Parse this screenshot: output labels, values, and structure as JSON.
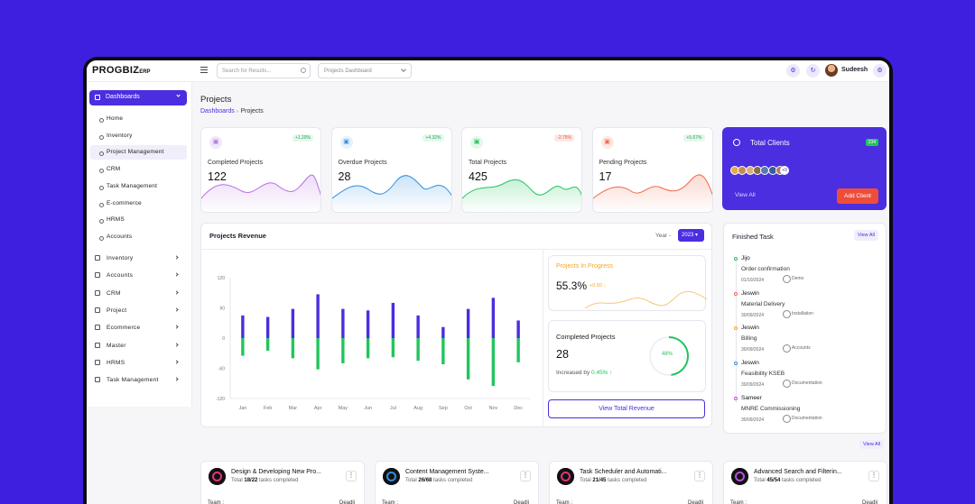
{
  "app": {
    "logo": "PROGBIZ",
    "logo_suffix": "ERP"
  },
  "topbar": {
    "search_placeholder": "Search for Results...",
    "select_value": "Projects Dashboard",
    "user": "Sudeesh"
  },
  "sidebar": {
    "active": "Dashboards",
    "sub_items": [
      {
        "label": "Home"
      },
      {
        "label": "Inventory"
      },
      {
        "label": "Project Management",
        "active": true
      },
      {
        "label": "CRM"
      },
      {
        "label": "Task Management"
      },
      {
        "label": "E-commerce"
      },
      {
        "label": "HRMS"
      },
      {
        "label": "Accounts"
      }
    ],
    "menu_items": [
      {
        "label": "Inventory",
        "icon": "home-icon"
      },
      {
        "label": "Accounts",
        "icon": "wallet-icon"
      },
      {
        "label": "CRM",
        "icon": "crm-icon"
      },
      {
        "label": "Project",
        "icon": "folder-icon"
      },
      {
        "label": "Ecommerce",
        "icon": "cart-icon"
      },
      {
        "label": "Master",
        "icon": "master-icon"
      },
      {
        "label": "HRMS",
        "icon": "people-icon"
      },
      {
        "label": "Task Management",
        "icon": "task-icon"
      }
    ]
  },
  "page": {
    "title": "Projects",
    "breadcrumb": {
      "home": "Dashboards",
      "sep": "»",
      "current": "Projects"
    }
  },
  "stats": [
    {
      "label": "Completed Projects",
      "value": "122",
      "change": "+1.20%",
      "color": "#b86fe0",
      "bg": "#f0e8fb",
      "icon": "document-icon",
      "pill_bg": "#e5f8ec",
      "pill_color": "#21a55d"
    },
    {
      "label": "Overdue Projects",
      "value": "28",
      "change": "+4.32%",
      "color": "#2f8fe0",
      "bg": "#e5f1fc",
      "icon": "briefcase-icon",
      "pill_bg": "#e5f8ec",
      "pill_color": "#21a55d"
    },
    {
      "label": "Total Projects",
      "value": "425",
      "change": "-2.75%",
      "color": "#21c55d",
      "bg": "#e3f8ea",
      "icon": "clipboard-icon",
      "pill_bg": "#fde8e6",
      "pill_color": "#e0513a"
    },
    {
      "label": "Pending Projects",
      "value": "17",
      "change": "+5.67%",
      "color": "#ef6a4a",
      "bg": "#fde8e3",
      "icon": "clock-icon",
      "pill_bg": "#e5f8ec",
      "pill_color": "#21a55d"
    }
  ],
  "clients": {
    "title": "Total Clients",
    "badge": "234",
    "more": "+9",
    "view_all": "View All",
    "add": "Add Client"
  },
  "revenue": {
    "title": "Projects Revenue",
    "year_label": "Year -",
    "year": "2023",
    "view_total": "View Total Revenue"
  },
  "chart_data": {
    "type": "bar",
    "categories": [
      "Jan",
      "Feb",
      "Mar",
      "Apr",
      "May",
      "Jun",
      "Jul",
      "Aug",
      "Sep",
      "Oct",
      "Nov",
      "Dec"
    ],
    "series": [
      {
        "color": "#4a2ee0",
        "values": [
          45,
          42,
          58,
          87,
          58,
          55,
          70,
          45,
          22,
          58,
          80,
          35
        ]
      },
      {
        "color": "#21c55d",
        "values": [
          -35,
          -25,
          -40,
          -62,
          -50,
          -40,
          -38,
          -45,
          -52,
          -82,
          -95,
          -48
        ]
      }
    ],
    "ylim": [
      -120,
      120
    ],
    "yticks": [
      "120",
      "60",
      "0",
      "-60",
      "-120"
    ]
  },
  "in_progress": {
    "title": "Projects In Progress",
    "value": "55.3%",
    "delta": "+0.50"
  },
  "completed": {
    "title": "Completed Projects",
    "value": "28",
    "increased_label": "Increased by",
    "increased": "0.45%",
    "ring_label": "48%",
    "ring_fraction": 0.48
  },
  "finished": {
    "title": "Finished Task",
    "view_all": "View All",
    "bottom_view_all": "View All",
    "tasks": [
      {
        "name": "Jijo",
        "desc": "Order confirmation",
        "date": "01/10/2024",
        "tag": "Demo",
        "color": "#21c55d"
      },
      {
        "name": "Jeswin",
        "desc": "Material Delivery",
        "date": "30/09/2024",
        "tag": "Installation",
        "color": "#ef6a4a"
      },
      {
        "name": "Jeswin",
        "desc": "Billing",
        "date": "30/09/2024",
        "tag": "Accounts",
        "color": "#f5a623"
      },
      {
        "name": "Jeswin",
        "desc": "Feasibility KSEB",
        "date": "30/09/2024",
        "tag": "Documentation",
        "color": "#2f8fe0"
      },
      {
        "name": "Sameer",
        "desc": "MNRE Commissioning",
        "date": "30/09/2024",
        "tag": "Documentation",
        "color": "#c04fd8"
      }
    ]
  },
  "projects": [
    {
      "title": "Design & Developing New Pro...",
      "done": "18/22",
      "suffix": "tasks completed",
      "color": "#e0337a"
    },
    {
      "title": "Content Management Syste...",
      "done": "26/68",
      "suffix": "tasks completed",
      "color": "#2f8fe0"
    },
    {
      "title": "Task Scheduler and Automati...",
      "done": "21/45",
      "suffix": "tasks completed",
      "color": "#e0337a"
    },
    {
      "title": "Advanced Search and Filterin...",
      "done": "45/54",
      "suffix": "tasks completed",
      "color": "#b84fe0"
    }
  ],
  "project_labels": {
    "total": "Total",
    "team": "Team :",
    "deadline": "Deadli"
  }
}
